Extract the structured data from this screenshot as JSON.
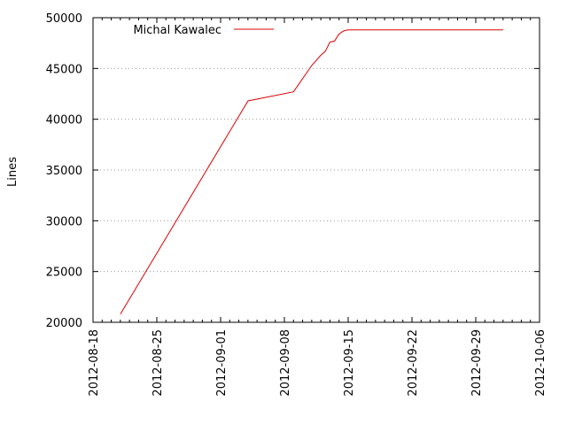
{
  "chart_data": {
    "type": "line",
    "ylabel": "Lines",
    "xlabel": "",
    "ylim": [
      20000,
      50000
    ],
    "xlim": [
      "2012-08-18",
      "2012-10-06"
    ],
    "yticks": [
      20000,
      25000,
      30000,
      35000,
      40000,
      45000,
      50000
    ],
    "ytick_labels": [
      "20000",
      "25000",
      "30000",
      "35000",
      "40000",
      "45000",
      "50000"
    ],
    "xticks": [
      "2012-08-18",
      "2012-08-25",
      "2012-09-01",
      "2012-09-08",
      "2012-09-15",
      "2012-09-22",
      "2012-09-29",
      "2012-10-06"
    ],
    "grid": "y-dotted",
    "legend_position": "top-left",
    "series": [
      {
        "name": "Michal Kawalec",
        "color": "#dd0000",
        "points": [
          [
            "2012-08-21",
            20800
          ],
          [
            "2012-09-04",
            41800
          ],
          [
            "2012-09-09",
            42700
          ],
          [
            "2012-09-11",
            45300
          ],
          [
            "2012-09-12",
            46300
          ],
          [
            "2012-09-12T12:00",
            46700
          ],
          [
            "2012-09-13",
            47600
          ],
          [
            "2012-09-13T12:00",
            47700
          ],
          [
            "2012-09-14",
            48400
          ],
          [
            "2012-09-14T12:00",
            48700
          ],
          [
            "2012-09-15",
            48800
          ],
          [
            "2012-10-02",
            48800
          ]
        ]
      }
    ]
  }
}
